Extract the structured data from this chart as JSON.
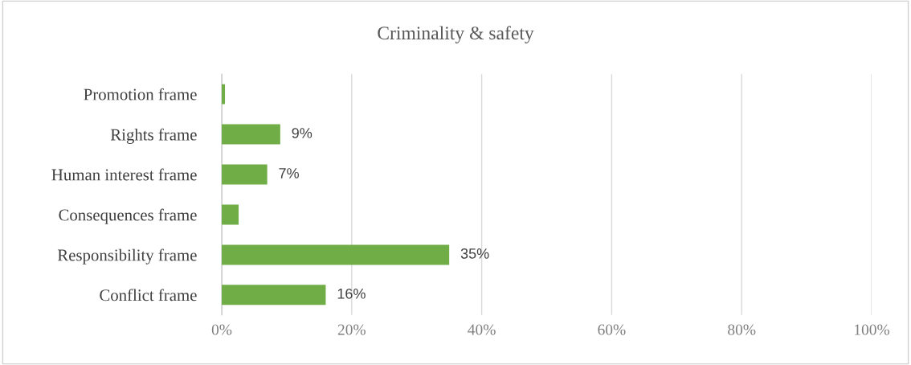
{
  "chart_data": {
    "type": "bar",
    "orientation": "horizontal",
    "title": "Criminality & safety",
    "categories": [
      "Promotion frame",
      "Rights frame",
      "Human interest frame",
      "Consequences frame",
      "Responsibility frame",
      "Conflict frame"
    ],
    "values": [
      0.5,
      9,
      7,
      2.6,
      35,
      16
    ],
    "value_labels": [
      null,
      "9%",
      "7%",
      null,
      "35%",
      "16%"
    ],
    "color": "#70ad47",
    "xlim": [
      0,
      100
    ],
    "xticks": [
      {
        "value": 0,
        "label": "0%"
      },
      {
        "value": 20,
        "label": "20%"
      },
      {
        "value": 40,
        "label": "40%"
      },
      {
        "value": 60,
        "label": "60%"
      },
      {
        "value": 80,
        "label": "80%"
      },
      {
        "value": 100,
        "label": "100%"
      }
    ],
    "grid": "x",
    "legend": false
  }
}
